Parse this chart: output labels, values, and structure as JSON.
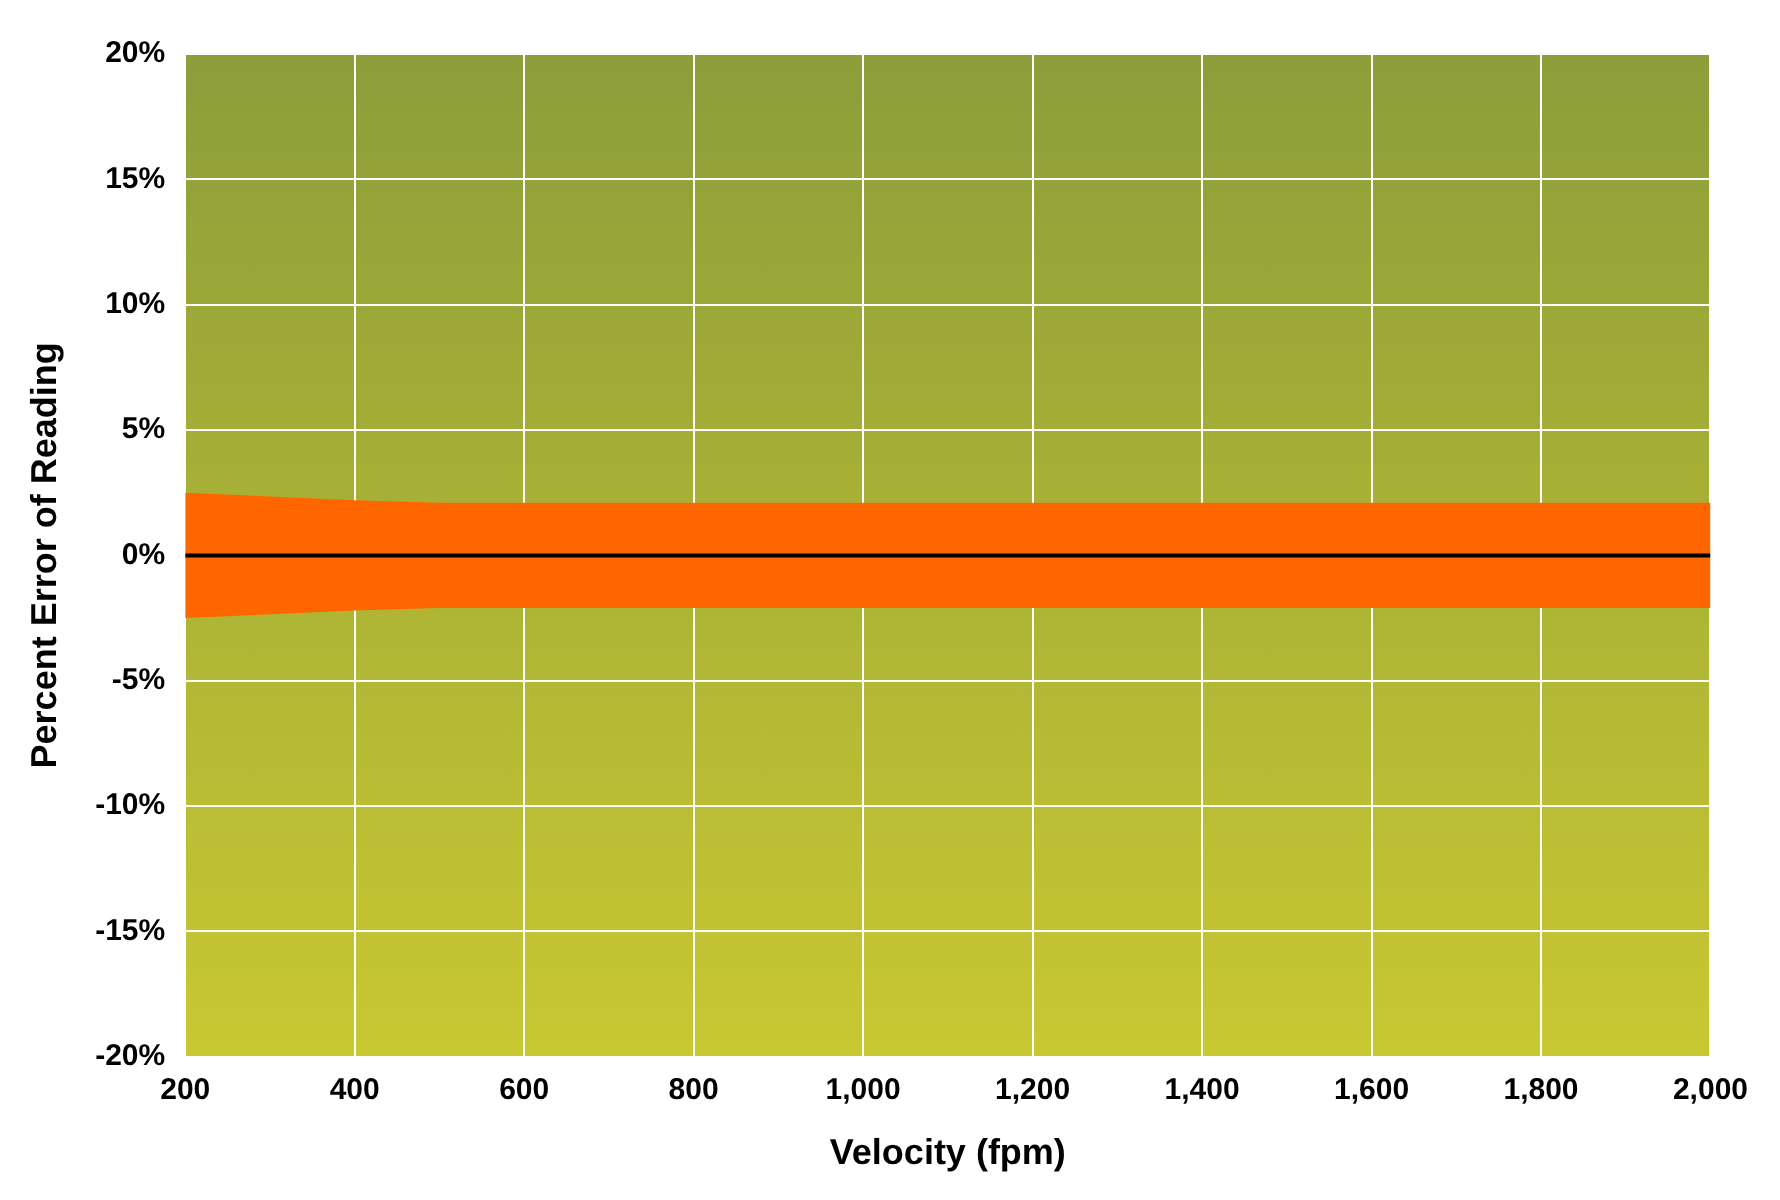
{
  "chart_data": {
    "type": "line",
    "xlabel": "Velocity (fpm)",
    "ylabel": "Percent Error of Reading",
    "x": [
      200,
      300,
      400,
      500,
      2000
    ],
    "series": [
      {
        "color": "#ff6600",
        "values": [
          null,
          null,
          null,
          null,
          null
        ],
        "lower": [
          -2.5,
          -2.35,
          -2.2,
          -2.1,
          -2.1
        ],
        "upper": [
          2.5,
          2.35,
          2.2,
          2.1,
          2.1
        ]
      },
      {
        "color": "#000000",
        "values": [
          0,
          0,
          0,
          0,
          0
        ]
      }
    ],
    "xlim": [
      200,
      2000
    ],
    "xticks": [
      200,
      400,
      600,
      800,
      {
        "value": 1000,
        "label": "1,000"
      },
      {
        "value": 1200,
        "label": "1,200"
      },
      {
        "value": 1400,
        "label": "1,400"
      },
      {
        "value": 1600,
        "label": "1,600"
      },
      {
        "value": 1800,
        "label": "1,800"
      },
      {
        "value": 2000,
        "label": "2,000"
      }
    ],
    "ylim": [
      -20,
      20
    ],
    "yticks": [
      {
        "value": -20,
        "label": "-20%"
      },
      {
        "value": -15,
        "label": "-15%"
      },
      {
        "value": -10,
        "label": "-10%"
      },
      {
        "value": -5,
        "label": "-5%"
      },
      {
        "value": 0,
        "label": "0%"
      },
      {
        "value": 5,
        "label": "5%"
      },
      {
        "value": 10,
        "label": "10%"
      },
      {
        "value": 15,
        "label": "15%"
      },
      {
        "value": 20,
        "label": "20%"
      }
    ],
    "grid": true,
    "marker": "none",
    "line_style": "solid",
    "legend": false
  }
}
